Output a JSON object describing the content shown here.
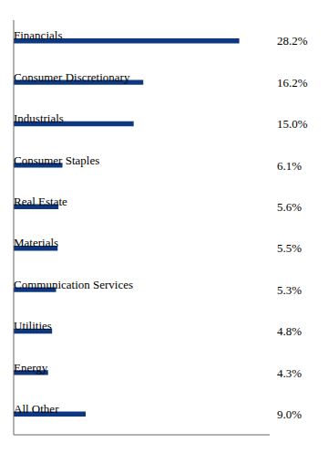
{
  "chart_data": {
    "type": "bar",
    "orientation": "horizontal",
    "categories": [
      "Financials",
      "Consumer Discretionary",
      "Industrials",
      "Consumer Staples",
      "Real Estate",
      "Materials",
      "Communication Services",
      "Utilities",
      "Energy",
      "All Other"
    ],
    "values": [
      28.2,
      16.2,
      15.0,
      6.1,
      5.6,
      5.5,
      5.3,
      4.8,
      4.3,
      9.0
    ],
    "value_labels": [
      "28.2%",
      "16.2%",
      "15.0%",
      "6.1%",
      "5.6%",
      "5.5%",
      "5.3%",
      "4.8%",
      "4.3%",
      "9.0%"
    ],
    "data_labels": true,
    "color": "#0d3880",
    "xlim": [
      0,
      32
    ],
    "tick_labels": false
  }
}
